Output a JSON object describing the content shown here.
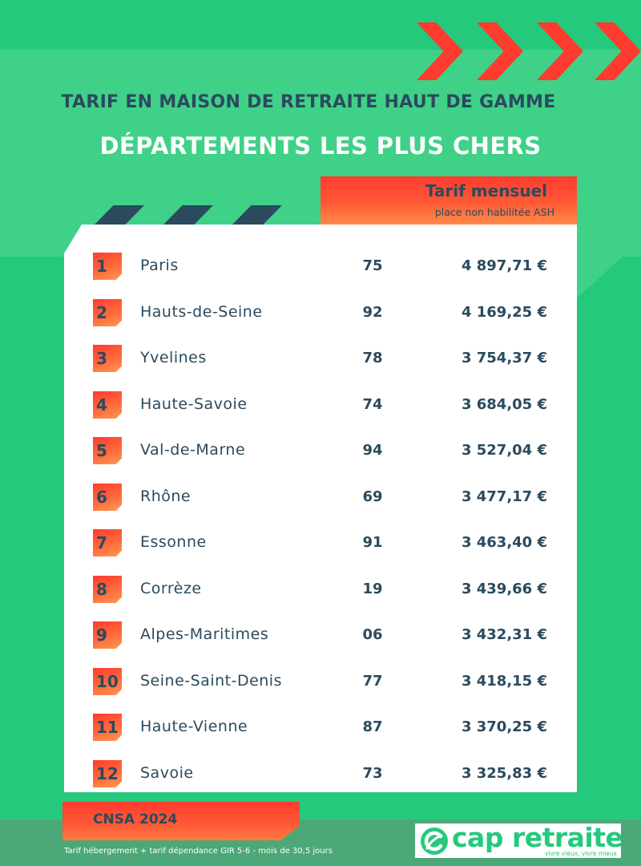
{
  "title": "TARIF EN MAISON DE RETRAITE HAUT DE GAMME",
  "subtitle": "DÉPARTEMENTS LES PLUS CHERS",
  "column_header": {
    "title": "Tarif mensuel",
    "subtitle": "place non habilitée ASH"
  },
  "rows": [
    {
      "rank": "1",
      "name": "Paris",
      "code": "75",
      "price": "4 897,71 €"
    },
    {
      "rank": "2",
      "name": "Hauts-de-Seine",
      "code": "92",
      "price": "4 169,25 €"
    },
    {
      "rank": "3",
      "name": "Yvelines",
      "code": "78",
      "price": "3 754,37 €"
    },
    {
      "rank": "4",
      "name": "Haute-Savoie",
      "code": "74",
      "price": "3 684,05 €"
    },
    {
      "rank": "5",
      "name": "Val-de-Marne",
      "code": "94",
      "price": "3 527,04 €"
    },
    {
      "rank": "6",
      "name": "Rhône",
      "code": "69",
      "price": "3 477,17 €"
    },
    {
      "rank": "7",
      "name": "Essonne",
      "code": "91",
      "price": "3 463,40 €"
    },
    {
      "rank": "8",
      "name": "Corrèze",
      "code": "19",
      "price": "3 439,66 €"
    },
    {
      "rank": "9",
      "name": "Alpes-Maritimes",
      "code": "06",
      "price": "3 432,31 €"
    },
    {
      "rank": "10",
      "name": "Seine-Saint-Denis",
      "code": "77",
      "price": "3 418,15 €"
    },
    {
      "rank": "11",
      "name": "Haute-Vienne",
      "code": "87",
      "price": "3 370,25 €"
    },
    {
      "rank": "12",
      "name": "Savoie",
      "code": "73",
      "price": "3 325,83 €"
    }
  ],
  "source": "CNSA 2024",
  "footnote": "Tarif hébergement + tarif dépendance GIR 5-6 - mois de 30,5 jours",
  "logo": {
    "name": "cap retraite",
    "tagline": "vivre vieux, vivre mieux",
    "icon": "cap-retraite-logo-icon"
  },
  "colors": {
    "background": "#25c97c",
    "band": "#3fd188",
    "accent": "#ff3b2f",
    "text_dark": "#2b4a5e",
    "footer": "#4ca877"
  }
}
